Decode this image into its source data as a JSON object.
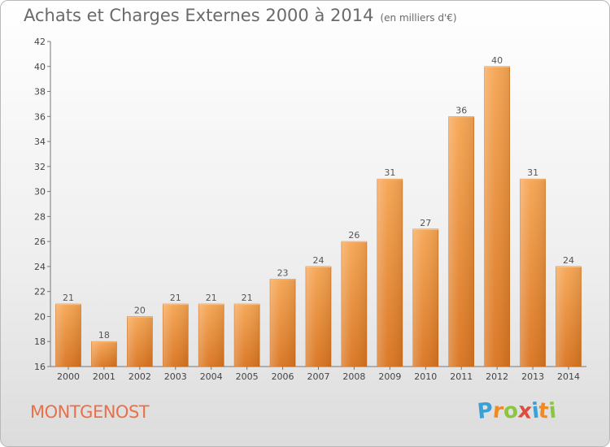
{
  "header": {
    "title": "Achats et Charges Externes 2000 à 2014",
    "unit": "(en milliers d'€)"
  },
  "footer": {
    "commune": "MONTGENOST",
    "logo": {
      "letters": [
        "P",
        "r",
        "o",
        "x",
        "i",
        "t",
        "i"
      ],
      "colors": [
        "#3aa0d8",
        "#f08a24",
        "#8cc63e",
        "#e04b3c",
        "#3aa0d8",
        "#f08a24",
        "#8cc63e"
      ]
    }
  },
  "chart_data": {
    "type": "bar",
    "title": "Achats et Charges Externes 2000 à 2014",
    "subtitle": "(en milliers d'€)",
    "categories": [
      "2000",
      "2001",
      "2002",
      "2003",
      "2004",
      "2005",
      "2006",
      "2007",
      "2008",
      "2009",
      "2010",
      "2011",
      "2012",
      "2013",
      "2014"
    ],
    "values": [
      21,
      18,
      20,
      21,
      21,
      21,
      23,
      24,
      26,
      31,
      27,
      36,
      40,
      31,
      24
    ],
    "ylim": [
      16,
      42
    ],
    "yticks": [
      16,
      18,
      20,
      22,
      24,
      26,
      28,
      30,
      32,
      34,
      36,
      38,
      40,
      42
    ],
    "grid": false,
    "bar_color": "#f0923e"
  }
}
